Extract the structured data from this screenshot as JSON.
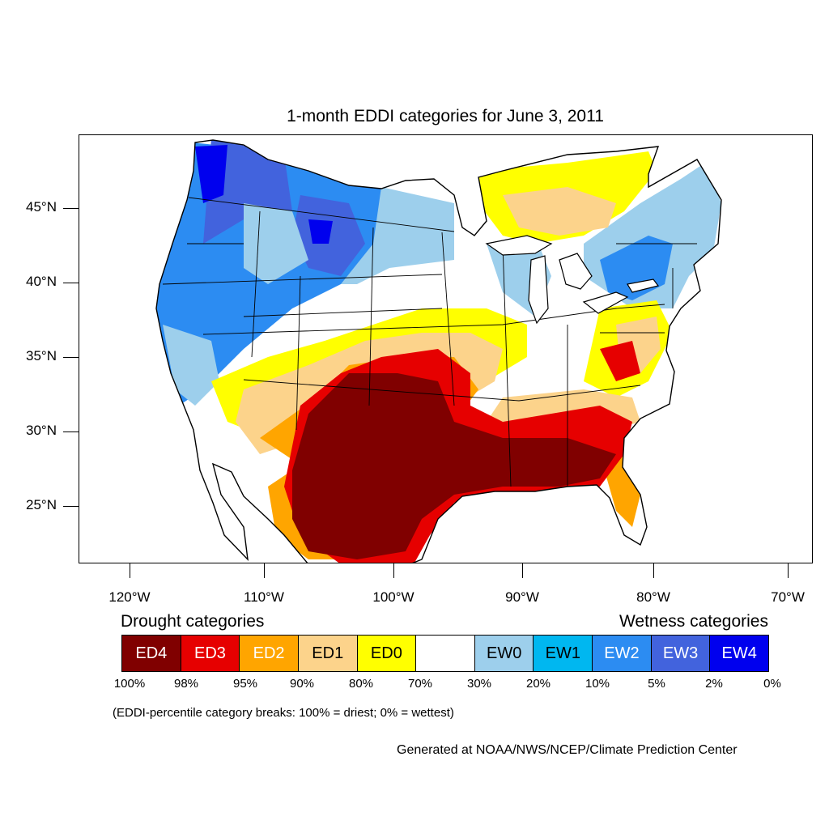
{
  "title": "1-month EDDI categories for June 3, 2011",
  "lat_labels": [
    "45°N",
    "40°N",
    "35°N",
    "30°N",
    "25°N"
  ],
  "lon_labels": [
    "120°W",
    "110°W",
    "100°W",
    "90°W",
    "80°W",
    "70°W"
  ],
  "legend": {
    "drought_title": "Drought categories",
    "wetness_title": "Wetness categories",
    "categories": [
      {
        "label": "ED4",
        "color": "#800000",
        "text_color": "#ffffff"
      },
      {
        "label": "ED3",
        "color": "#e60000",
        "text_color": "#ffffff"
      },
      {
        "label": "ED2",
        "color": "#ffa500",
        "text_color": "#ffffff"
      },
      {
        "label": "ED1",
        "color": "#fcd38b",
        "text_color": "#000000"
      },
      {
        "label": "ED0",
        "color": "#ffff00",
        "text_color": "#000000"
      },
      {
        "label": "",
        "color": "#ffffff",
        "text_color": "#000000"
      },
      {
        "label": "EW0",
        "color": "#9dcfec",
        "text_color": "#000000"
      },
      {
        "label": "EW1",
        "color": "#00b7f0",
        "text_color": "#000000"
      },
      {
        "label": "EW2",
        "color": "#2c8cf2",
        "text_color": "#ffffff"
      },
      {
        "label": "EW3",
        "color": "#4263dd",
        "text_color": "#ffffff"
      },
      {
        "label": "EW4",
        "color": "#0000ee",
        "text_color": "#ffffff"
      }
    ],
    "percentiles": [
      "100%",
      "98%",
      "95%",
      "90%",
      "80%",
      "70%",
      "30%",
      "20%",
      "10%",
      "5%",
      "2%",
      "0%"
    ]
  },
  "note": "(EDDI-percentile category breaks: 100% = driest; 0% = wettest)",
  "credit": "Generated at NOAA/NWS/NCEP/Climate Prediction Center"
}
